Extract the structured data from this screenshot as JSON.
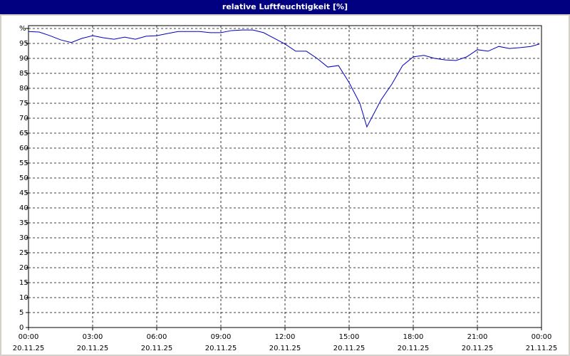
{
  "chart_data": {
    "type": "line",
    "title": "relative Luftfeuchtigkeit [%]",
    "x": [
      0,
      0.5,
      1,
      1.5,
      2,
      2.5,
      3,
      3.5,
      4,
      4.5,
      5,
      5.5,
      6,
      6.5,
      7,
      7.5,
      8,
      8.5,
      9,
      9.5,
      10,
      10.5,
      11,
      11.5,
      12,
      12.5,
      13,
      13.5,
      14,
      14.5,
      15,
      15.5,
      15.83,
      16.5,
      17,
      17.5,
      18,
      18.5,
      19,
      19.5,
      20,
      20.5,
      21,
      21.5,
      22,
      22.5,
      23,
      23.5,
      23.9
    ],
    "series": [
      {
        "name": "relative Luftfeuchtigkeit",
        "color": "#0000c0",
        "values": [
          99,
          98.8,
          97.6,
          96.2,
          95.3,
          96.7,
          97.6,
          96.9,
          96.4,
          97.1,
          96.4,
          97.4,
          97.6,
          98.3,
          99,
          99,
          99,
          98.6,
          98.6,
          99.3,
          99.5,
          99.5,
          98.6,
          96.7,
          94.8,
          92.4,
          92.4,
          90,
          87.1,
          87.6,
          81.9,
          75,
          67.1,
          76.2,
          81.4,
          87.6,
          90.5,
          91,
          90,
          89.5,
          89.3,
          90.5,
          92.9,
          92.4,
          94,
          93.3,
          93.6,
          94,
          94.8
        ]
      }
    ],
    "xlim": [
      0,
      24
    ],
    "xticks": [
      {
        "value": 0,
        "label": "00:00 20.11.25"
      },
      {
        "value": 3,
        "label": "03:00 20.11.25"
      },
      {
        "value": 6,
        "label": "06:00 20.11.25"
      },
      {
        "value": 9,
        "label": "09:00 20.11.25"
      },
      {
        "value": 12,
        "label": "12:00 20.11.25"
      },
      {
        "value": 15,
        "label": "15:00 20.11.25"
      },
      {
        "value": 18,
        "label": "18:00 20.11.25"
      },
      {
        "value": 21,
        "label": "21:00 20.11.25"
      },
      {
        "value": 24,
        "label": "00:00 21.11.25"
      }
    ],
    "ylim": [
      0,
      100
    ],
    "yticks": [
      0,
      5,
      10,
      15,
      20,
      25,
      30,
      35,
      40,
      45,
      50,
      55,
      60,
      65,
      70,
      75,
      80,
      85,
      90,
      95,
      {
        "value": 100,
        "label": "%"
      }
    ],
    "grid": true
  }
}
